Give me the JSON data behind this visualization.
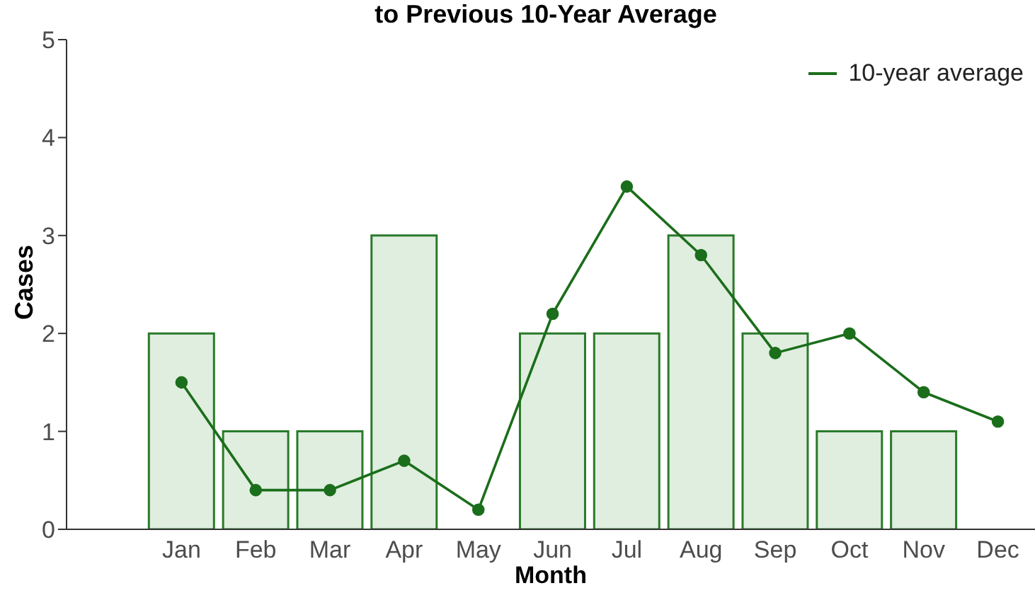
{
  "chart_data": {
    "type": "bar",
    "title": "to Previous 10-Year Average",
    "xlabel": "Month",
    "ylabel": "Cases",
    "categories": [
      "Jan",
      "Feb",
      "Mar",
      "Apr",
      "May",
      "Jun",
      "Jul",
      "Aug",
      "Sep",
      "Oct",
      "Nov",
      "Dec"
    ],
    "series": [
      {
        "color": "#dfeedf",
        "values": [
          2,
          1,
          1,
          3,
          0,
          2,
          2,
          3,
          2,
          1,
          1,
          0
        ]
      },
      {
        "type": "line",
        "name": "10-year average",
        "color": "#1b6e1b",
        "values": [
          1.5,
          0.4,
          0.4,
          0.7,
          0.2,
          2.2,
          3.5,
          2.8,
          1.8,
          2.0,
          1.4,
          1.1
        ]
      }
    ],
    "ylim": [
      0,
      5
    ],
    "yticks": [
      0,
      1,
      2,
      3,
      4,
      5
    ],
    "grid": false,
    "legend": "top right",
    "marker": "circle",
    "line_style": "solid"
  }
}
